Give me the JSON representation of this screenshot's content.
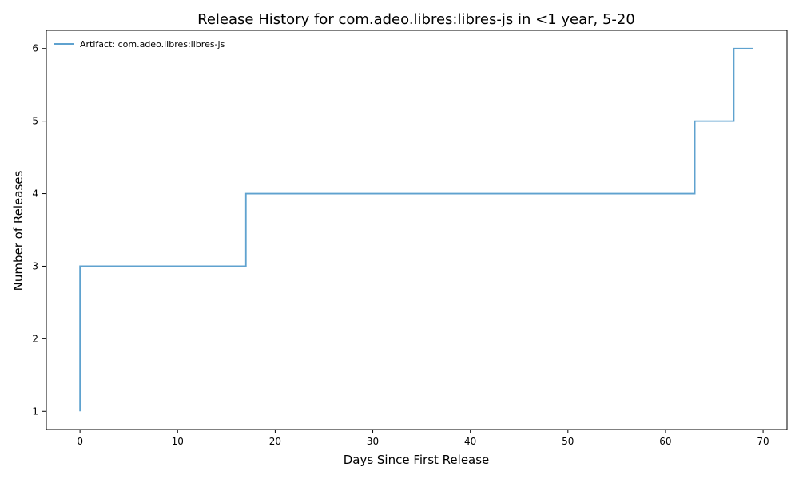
{
  "chart_data": {
    "type": "line",
    "step": "post",
    "title": "Release History for com.adeo.libres:libres-js in <1 year, 5-20",
    "xlabel": "Days Since First Release",
    "ylabel": "Number of Releases",
    "xlim": [
      -3.45,
      72.45
    ],
    "ylim": [
      0.75,
      6.25
    ],
    "xticks": [
      0,
      10,
      20,
      30,
      40,
      50,
      60,
      70
    ],
    "yticks": [
      1,
      2,
      3,
      4,
      5,
      6
    ],
    "grid": false,
    "legend": "top-left",
    "series": [
      {
        "name": "Artifact: com.adeo.libres:libres-js",
        "color": "#5fa2cf",
        "x": [
          0,
          0,
          0,
          17,
          63,
          67,
          69
        ],
        "y": [
          1,
          2,
          3,
          4,
          5,
          6,
          6
        ]
      }
    ]
  }
}
